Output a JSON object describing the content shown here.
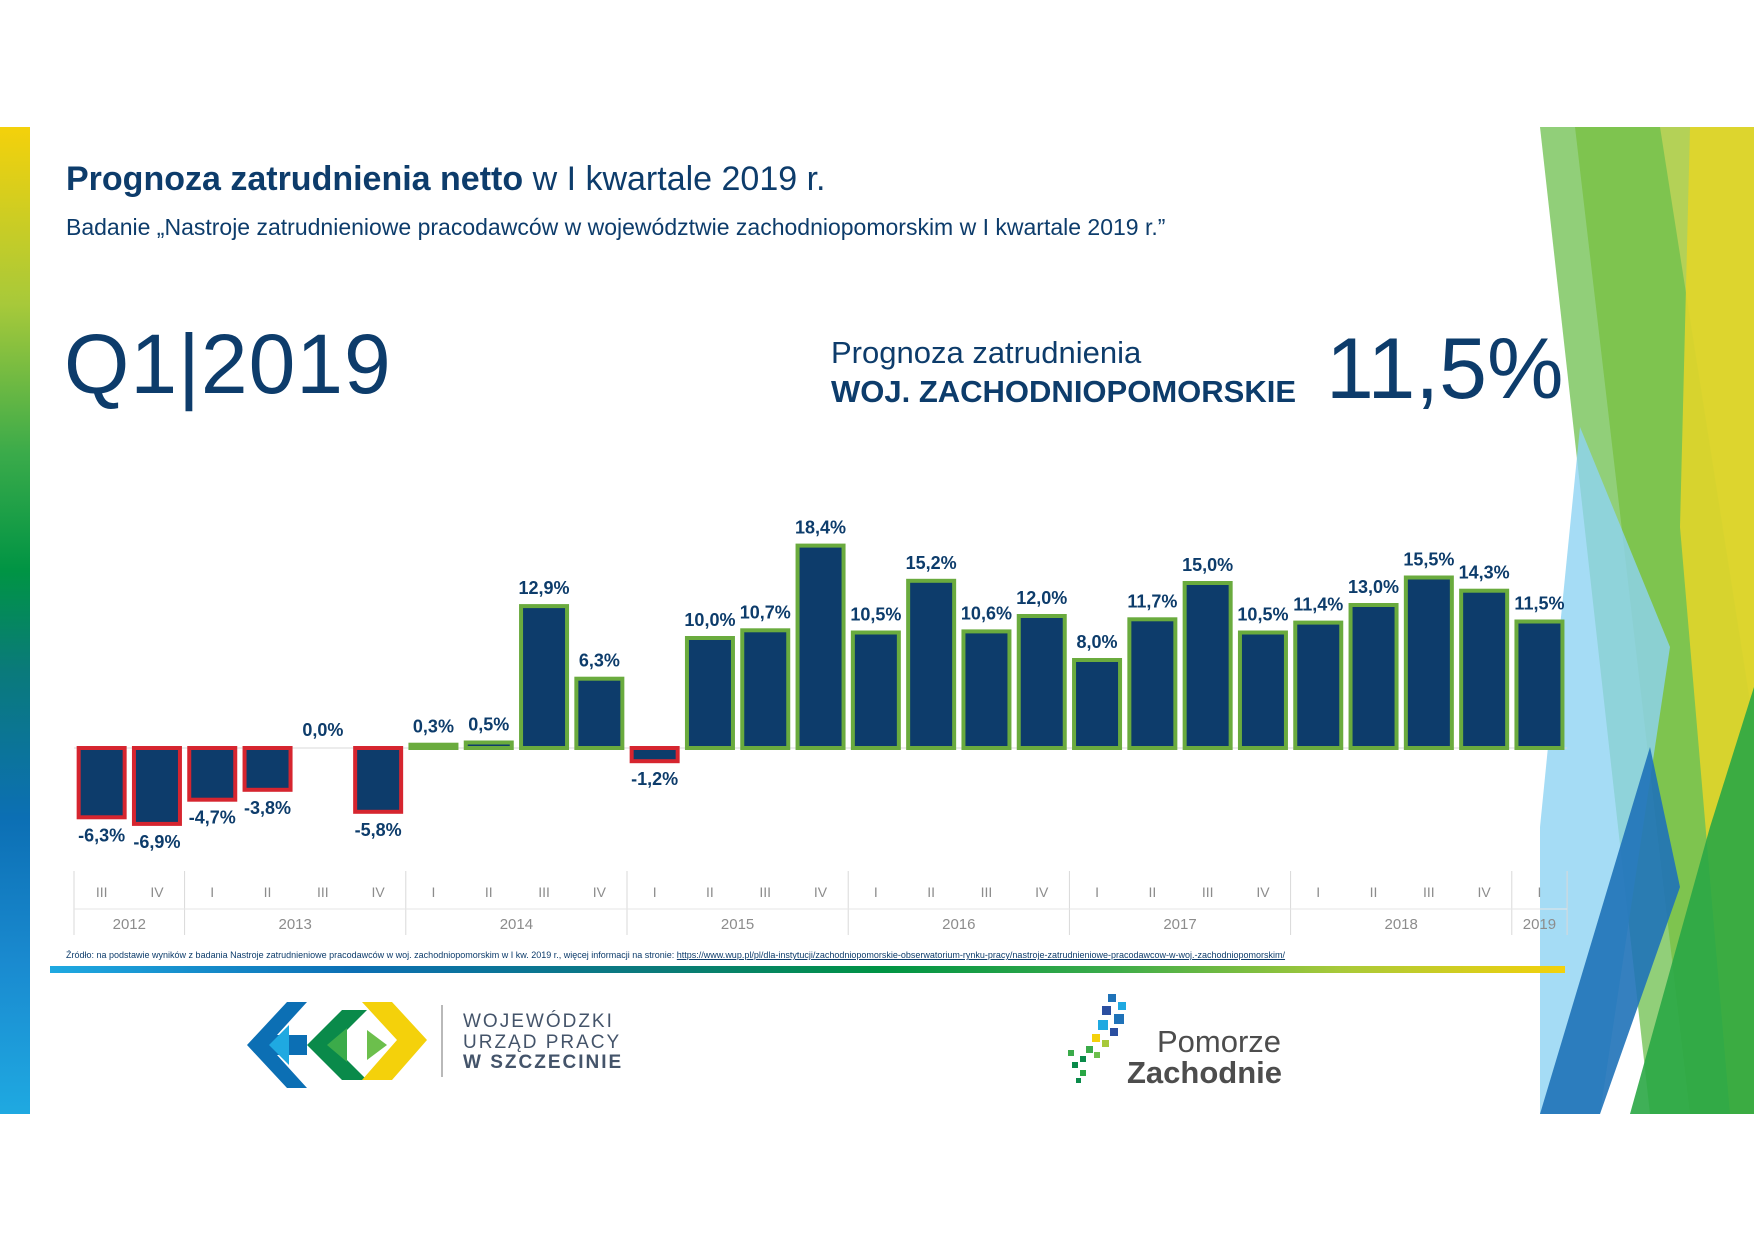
{
  "header": {
    "title_bold": "Prognoza zatrudnienia netto",
    "title_rest": " w I kwartale 2019 r.",
    "subtitle": "Badanie „Nastroje zatrudnieniowe pracodawców w województwie zachodniopomorskim w I kwartale 2019 r.”"
  },
  "quarter_label": "Q1|2019",
  "forecast": {
    "caption": "Prognoza zatrudnienia",
    "region": "WOJ. ZACHODNIOPOMORSKIE",
    "value": "11,5%"
  },
  "colors": {
    "bar_fill": "#0d3c6b",
    "positive_border": "#6aab3e",
    "negative_border": "#d6252f",
    "text_dark_blue": "#0d3c6b",
    "axis_text": "#8c8c8c"
  },
  "chart_data": {
    "type": "bar",
    "categories": [
      "III",
      "IV",
      "I",
      "II",
      "III",
      "IV",
      "I",
      "II",
      "III",
      "IV",
      "I",
      "II",
      "III",
      "IV",
      "I",
      "II",
      "III",
      "IV",
      "I",
      "II",
      "III",
      "IV",
      "I",
      "II",
      "III",
      "IV",
      "I"
    ],
    "years": [
      {
        "label": "2012",
        "count": 2
      },
      {
        "label": "2013",
        "count": 4
      },
      {
        "label": "2014",
        "count": 4
      },
      {
        "label": "2015",
        "count": 4
      },
      {
        "label": "2016",
        "count": 4
      },
      {
        "label": "2017",
        "count": 4
      },
      {
        "label": "2018",
        "count": 4
      },
      {
        "label": "2019",
        "count": 1
      }
    ],
    "values": [
      -6.3,
      -6.9,
      -4.7,
      -3.8,
      0.0,
      -5.8,
      0.3,
      0.5,
      12.9,
      6.3,
      -1.2,
      10.0,
      10.7,
      18.4,
      10.5,
      15.2,
      10.6,
      12.0,
      8.0,
      11.7,
      15.0,
      10.5,
      11.4,
      13.0,
      15.5,
      14.3,
      11.5
    ],
    "labels": [
      "-6,3%",
      "-6,9%",
      "-4,7%",
      "-3,8%",
      "0,0%",
      "-5,8%",
      "0,3%",
      "0,5%",
      "12,9%",
      "6,3%",
      "-1,2%",
      "10,0%",
      "10,7%",
      "18,4%",
      "10,5%",
      "15,2%",
      "10,6%",
      "12,0%",
      "8,0%",
      "11,7%",
      "15,0%",
      "10,5%",
      "11,4%",
      "13,0%",
      "15,5%",
      "14,3%",
      "11,5%"
    ],
    "ylim": [
      -7,
      18.4
    ],
    "title": "",
    "xlabel": "",
    "ylabel": ""
  },
  "footer": {
    "source_prefix": "Źródło: na podstawie wyników z badania Nastroje zatrudnieniowe pracodawców w woj. zachodniopomorskim w I kw. 2019 r., więcej informacji na stronie: ",
    "source_url": "https://www.wup.pl/pl/dla-instytucji/zachodniopomorskie-obserwatorium-rynku-pracy/nastroje-zatrudnieniowe-pracodawcow-w-woj.-zachodniopomorskim/"
  },
  "logos": {
    "wup": {
      "line1": "WOJEWÓDZKI",
      "line2": "URZĄD PRACY",
      "line3": "W  SZCZECINIE"
    },
    "pz": {
      "line1": "Pomorze",
      "line2": "Zachodnie"
    }
  }
}
